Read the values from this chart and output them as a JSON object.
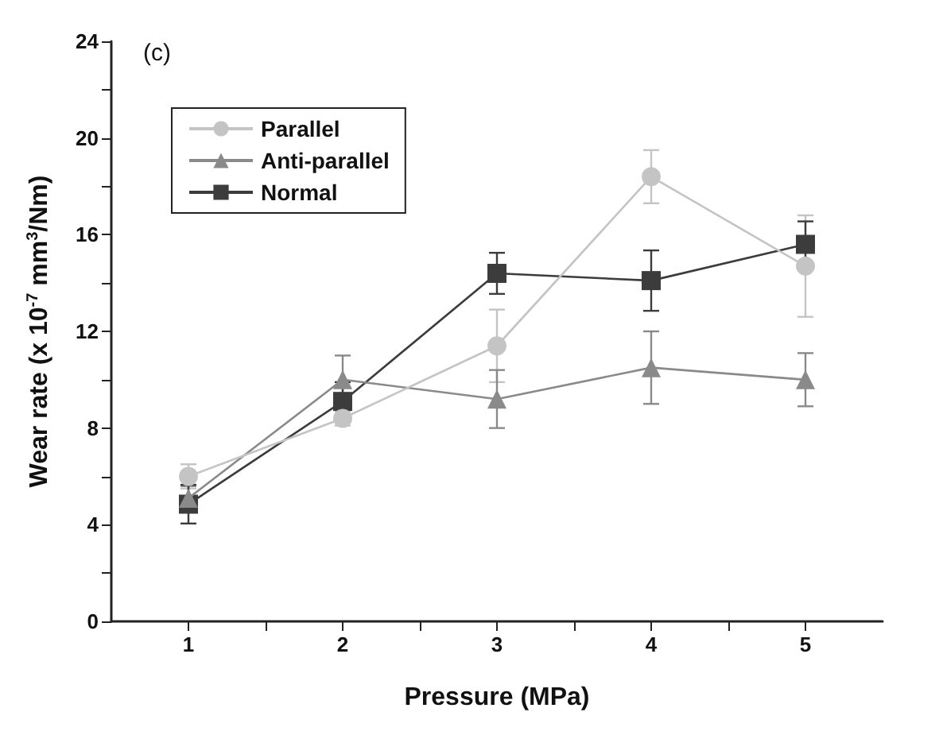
{
  "chart_data": {
    "type": "line",
    "xlabel": "Pressure (MPa)",
    "ylabel": "Wear rate (x 10$^{-7}$ mm$^{3}$/Nm)",
    "annotations": [
      "(c)"
    ],
    "x": [
      1,
      2,
      3,
      4,
      5
    ],
    "xlim": [
      0.5,
      5.5
    ],
    "xticks": [
      1,
      2,
      3,
      4,
      5
    ],
    "ylim": [
      0,
      24
    ],
    "yticks": [
      0,
      4,
      8,
      12,
      16,
      20,
      24
    ],
    "grid": false,
    "legend": "top left",
    "line_style": "solid",
    "series": [
      {
        "name": "Parallel",
        "color": "#c4c4c4",
        "marker": "circle",
        "values": [
          6.0,
          8.4,
          11.4,
          18.4,
          14.7
        ],
        "errors": [
          0.5,
          0.3,
          1.5,
          1.1,
          2.1
        ]
      },
      {
        "name": "Anti-parallel",
        "color": "#8a8a8a",
        "marker": "triangle",
        "values": [
          5.1,
          10.0,
          9.2,
          10.5,
          10.0
        ],
        "errors": [
          0.5,
          1.0,
          1.2,
          1.5,
          1.1
        ]
      },
      {
        "name": "Normal",
        "color": "#3c3c3c",
        "marker": "square",
        "values": [
          4.85,
          9.1,
          14.4,
          14.1,
          15.6
        ],
        "errors": [
          0.8,
          0.8,
          0.85,
          1.25,
          0.95
        ]
      }
    ]
  }
}
